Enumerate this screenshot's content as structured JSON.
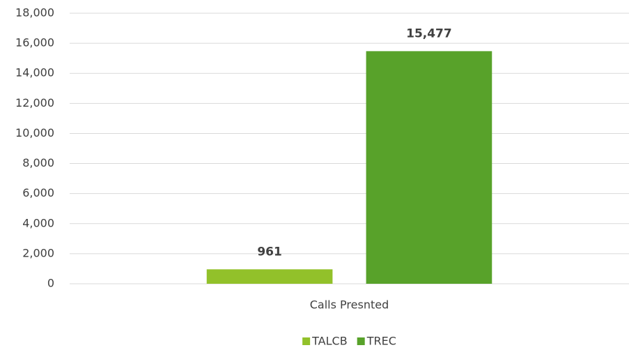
{
  "chart_data": {
    "type": "bar",
    "categories": [
      "Calls Presnted"
    ],
    "series": [
      {
        "name": "TALCB",
        "color": "#92c12a",
        "values": [
          961
        ],
        "value_labels": [
          "961"
        ]
      },
      {
        "name": "TREC",
        "color": "#58a22a",
        "values": [
          15477
        ],
        "value_labels": [
          "15,477"
        ]
      }
    ],
    "ylim": [
      0,
      18000
    ],
    "yticks": [
      0,
      {
        "value": 2000,
        "label": "2,000"
      },
      {
        "value": 4000,
        "label": "4,000"
      },
      {
        "value": 6000,
        "label": "6,000"
      },
      {
        "value": 8000,
        "label": "8,000"
      },
      {
        "value": 10000,
        "label": "10,000"
      },
      {
        "value": 12000,
        "label": "12,000"
      },
      {
        "value": 14000,
        "label": "14,000"
      },
      {
        "value": 16000,
        "label": "16,000"
      },
      {
        "value": 18000,
        "label": "18,000"
      }
    ],
    "grid": true,
    "legend": "bottom"
  }
}
